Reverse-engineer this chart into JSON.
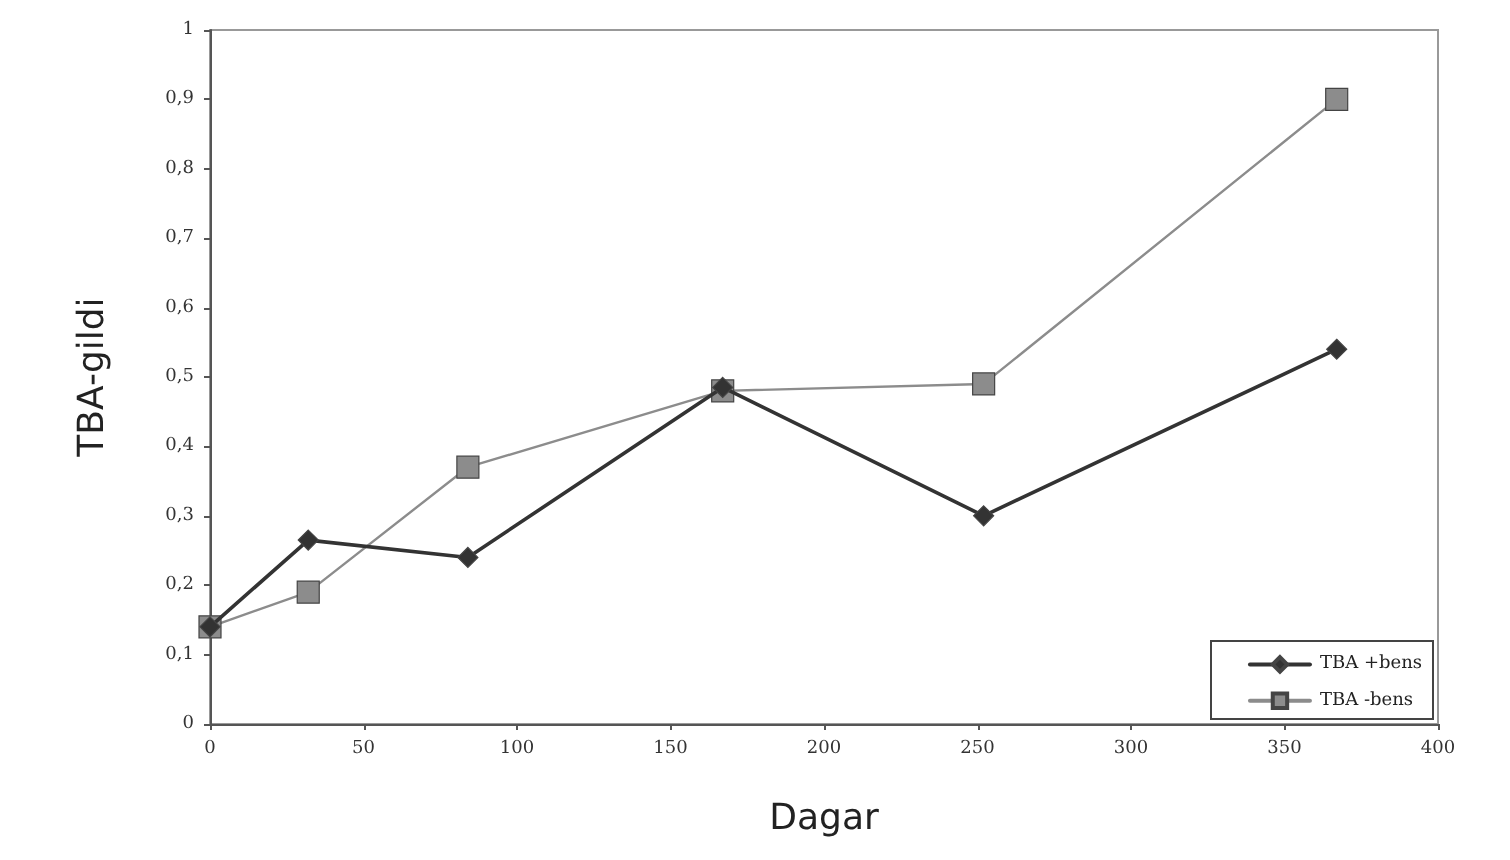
{
  "chart_data": {
    "type": "line",
    "xlabel": "Dagar",
    "ylabel": "TBA-gildi",
    "x": [
      0,
      32,
      84,
      167,
      252,
      367
    ],
    "series": [
      {
        "name": "TBA +bens",
        "color": "#333333",
        "marker": "diamond",
        "values": [
          0.14,
          0.265,
          0.24,
          0.485,
          0.3,
          0.54
        ]
      },
      {
        "name": "TBA -bens",
        "color": "#8c8c8c",
        "marker": "square",
        "values": [
          0.14,
          0.19,
          0.37,
          0.48,
          0.49,
          0.9
        ]
      }
    ],
    "xlim": [
      0,
      400
    ],
    "xticks": [
      0,
      50,
      100,
      150,
      200,
      250,
      300,
      350,
      400
    ],
    "ylim": [
      0,
      1
    ],
    "yticks": [
      0,
      {
        "value": 0.1,
        "label": "0,1"
      },
      {
        "value": 0.2,
        "label": "0,2"
      },
      {
        "value": 0.3,
        "label": "0,3"
      },
      {
        "value": 0.4,
        "label": "0,4"
      },
      {
        "value": 0.5,
        "label": "0,5"
      },
      {
        "value": 0.6,
        "label": "0,6"
      },
      {
        "value": 0.7,
        "label": "0,7"
      },
      {
        "value": 0.8,
        "label": "0,8"
      },
      {
        "value": 0.9,
        "label": "0,9"
      },
      1
    ],
    "grid": false,
    "legend": "bottom right",
    "line_style": "solid"
  }
}
